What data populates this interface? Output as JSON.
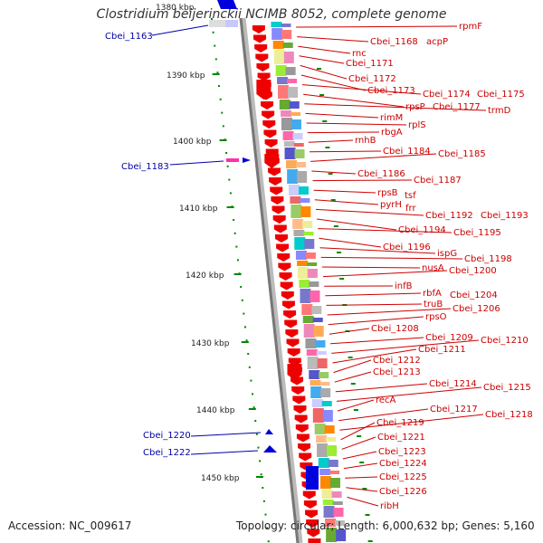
{
  "title": "Clostridium beijerinckii NCIMB 8052, complete genome",
  "accession": "Accession: NC_009617",
  "summary": "Topology: circular; Length: 6,000,632 bp; Genes: 5,160",
  "scale_labels": [
    "1380 kbp",
    "1390 kbp",
    "1400 kbp",
    "1410 kbp",
    "1420 kbp",
    "1430 kbp",
    "1440 kbp",
    "1450 kbp"
  ],
  "genes_right": [
    "rpmF",
    "Cbei_1168",
    "acpP",
    "rnc",
    "Cbei_1171",
    "Cbei_1172",
    "Cbei_1173",
    "Cbei_1174",
    "Cbei_1175",
    "rpsP",
    "Cbei_1177",
    "trmD",
    "rimM",
    "rplS",
    "rbgA",
    "rnhB",
    "Cbei_1184",
    "Cbei_1185",
    "Cbei_1186",
    "Cbei_1187",
    "rpsB",
    "tsf",
    "pyrH",
    "frr",
    "Cbei_1192",
    "Cbei_1193",
    "Cbei_1194",
    "Cbei_1195",
    "Cbei_1196",
    "ispG",
    "Cbei_1198",
    "nusA",
    "Cbei_1200",
    "infB",
    "rbfA",
    "Cbei_1204",
    "truB",
    "Cbei_1206",
    "rpsO",
    "Cbei_1208",
    "Cbei_1209",
    "Cbei_1210",
    "Cbei_1211",
    "Cbei_1212",
    "Cbei_1213",
    "Cbei_1214",
    "Cbei_1215",
    "recA",
    "Cbei_1217",
    "Cbei_1218",
    "Cbei_1219",
    "Cbei_1221",
    "Cbei_1223",
    "Cbei_1224",
    "Cbei_1225",
    "Cbei_1226",
    "ribH"
  ],
  "genes_left": [
    "Cbei_1163",
    "Cbei_1183",
    "Cbei_1220",
    "Cbei_1222"
  ]
}
